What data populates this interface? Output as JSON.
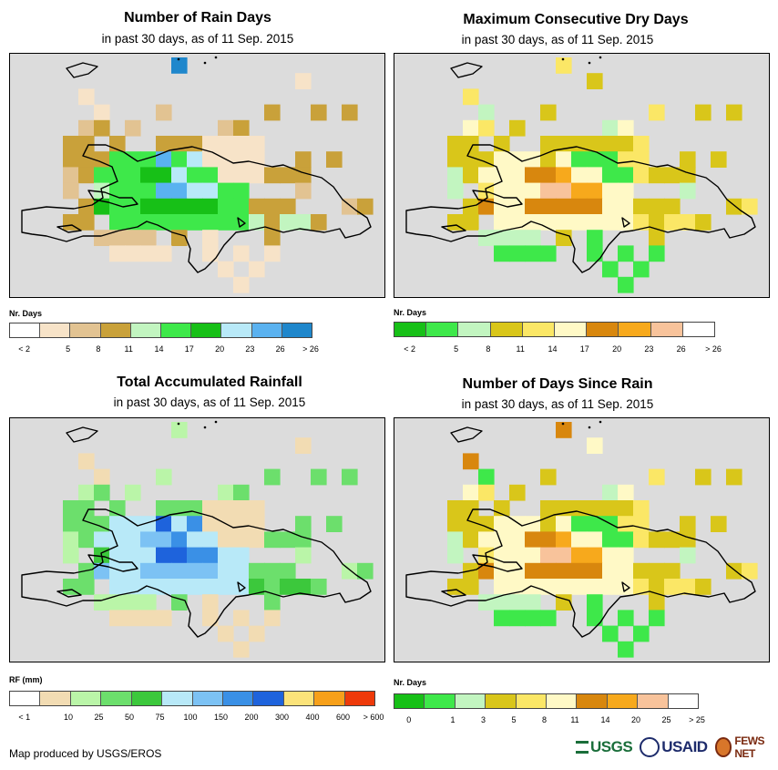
{
  "panels": [
    {
      "id": "rain_days",
      "title": "Number of Rain Days",
      "subtitle": "in past 30 days, as of 11 Sep. 2015",
      "legend_title": "Nr. Days",
      "legend_colors": [
        "#ffffff",
        "#f7e3c8",
        "#e2c392",
        "#c9a13a",
        "#c2f5c0",
        "#3ee84a",
        "#17c017",
        "#b8e9f8",
        "#5ab2f0",
        "#1f87cc"
      ],
      "legend_labels": [
        "< 2",
        "5",
        "8",
        "11",
        "14",
        "17",
        "20",
        "23",
        "26",
        "> 26"
      ],
      "grid": [
        "..........9...................",
        "..................1...........",
        "....1.........................",
        ".....1...2......3..3.3........",
        "....23.2.....23...............",
        "...33.3..3331111..............",
        "...3335558571111..3.3.........",
        "...2355566755111333...........",
        "...2.4555887755...2...........",
        "....36556666655333...23.......",
        "...33.55555555543443..........",
        ".....2222.3.1...3.......2.....",
        "......1111..1.1.1.............",
        ".............1.1..............",
        "..............1..............."
      ]
    },
    {
      "id": "dry_days",
      "title": "Maximum Consecutive Dry Days",
      "subtitle": "in past 30 days, as of 11 Sep. 2015",
      "legend_title": "Nr. Days",
      "legend_colors": [
        "#17c017",
        "#3ee84a",
        "#c2f5c0",
        "#d9c61a",
        "#fbe766",
        "#fff9c6",
        "#d8870e",
        "#f7a91c",
        "#f8c39b",
        "#ffffff"
      ],
      "legend_labels": [
        "< 2",
        "5",
        "8",
        "11",
        "14",
        "17",
        "20",
        "23",
        "26",
        "> 26"
      ],
      "grid": [
        "..........4...................",
        "............3.................",
        "....4.........................",
        ".....2...3......4..3.3........",
        "....54.3.....25...............",
        "...33.3..3333334..............",
        "...3335553511144..3.3.........",
        "...2355566755114333...........",
        "...2.4555887755...2...........",
        "....36556666655333...34.......",
        "...33.55555555543443..........",
        ".....2222.3.1...3.......2.....",
        "......1111..1.1.1.............",
        ".............1.1..............",
        "..............1..............."
      ]
    },
    {
      "id": "rainfall",
      "title": "Total Accumulated Rainfall",
      "subtitle": "in past 30 days, as of 11 Sep. 2015",
      "legend_title": "RF (mm)",
      "legend_colors": [
        "#ffffff",
        "#f2dcb3",
        "#baf5a8",
        "#6cdf6c",
        "#3cc83c",
        "#b8e9f8",
        "#7cc2f4",
        "#3a90e6",
        "#1e63dc",
        "#fbe37a",
        "#f7a01a",
        "#ee3a0a"
      ],
      "legend_labels": [
        "< 1",
        "10",
        "25",
        "50",
        "75",
        "100",
        "150",
        "200",
        "300",
        "400",
        "600",
        "> 600"
      ],
      "grid": [
        "..........2...................",
        "..................1...........",
        "....1.........................",
        ".....1...2......3..3.3........",
        "....23.2.....23...............",
        "...33.3..3331111..............",
        "...3335558571111..3.3.........",
        "...2355566755111333...........",
        "...2.4555887755...2...........",
        "....36556666655333...23.......",
        "...33.55555555543443..........",
        ".....2222.3.1...3.......2.....",
        "......1111..1.1.1.............",
        ".............1.1..............",
        "..............1..............."
      ]
    },
    {
      "id": "since_rain",
      "title": "Number of Days Since Rain",
      "subtitle": "in past 30 days, as of 11 Sep. 2015",
      "legend_title": "Nr. Days",
      "legend_colors": [
        "#17c017",
        "#3ee84a",
        "#c2f5c0",
        "#d9c61a",
        "#fbe766",
        "#fff9c6",
        "#d8870e",
        "#f7a91c",
        "#f8c39b",
        "#ffffff"
      ],
      "legend_labels": [
        "0",
        "1",
        "3",
        "5",
        "8",
        "11",
        "14",
        "20",
        "25",
        "> 25"
      ],
      "grid": [
        "..........6...................",
        "............5.................",
        "....6.........................",
        ".....1...3......4..3.3........",
        "....54.3.....25...............",
        "...33.3..3333334..............",
        "...3335553511144..3.3.........",
        "...2355566755114333...........",
        "...2.4555887755...2...........",
        "....36556666655333...34.......",
        "...33.55555555543443..........",
        ".....2222.3.1...3.......2.....",
        "......1111..1.1.1.............",
        ".............1.1..............",
        "..............1..............."
      ]
    }
  ],
  "footer": {
    "credit": "Map produced by USGS/EROS",
    "logo_usgs": "USGS",
    "logo_usaid": "USAID",
    "logo_fews": "FEWS NET"
  }
}
